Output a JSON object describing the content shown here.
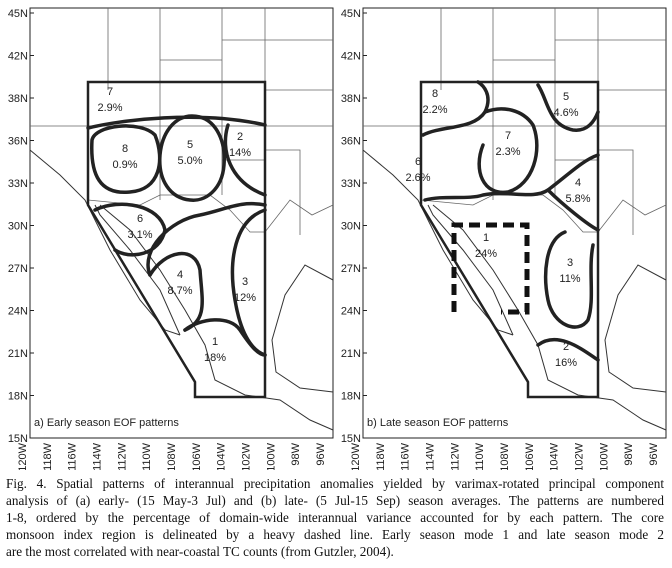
{
  "panels": [
    {
      "label": "a) Early season EOF patterns",
      "lat_ticks": [
        "45N",
        "42N",
        "38N",
        "36N",
        "33N",
        "30N",
        "27N",
        "24N",
        "21N",
        "18N",
        "15N"
      ],
      "lon_ticks": [
        "120W",
        "118W",
        "116W",
        "114W",
        "112W",
        "110W",
        "108W",
        "106W",
        "104W",
        "102W",
        "100W",
        "98W",
        "96W"
      ],
      "regions": [
        {
          "mode": "7",
          "percent": "2.9%"
        },
        {
          "mode": "8",
          "percent": "0.9%"
        },
        {
          "mode": "5",
          "percent": "5.0%"
        },
        {
          "mode": "2",
          "percent": "14%"
        },
        {
          "mode": "6",
          "percent": "3.1%"
        },
        {
          "mode": "4",
          "percent": "8.7%"
        },
        {
          "mode": "3",
          "percent": "12%"
        },
        {
          "mode": "1",
          "percent": "18%"
        }
      ]
    },
    {
      "label": "b) Late season EOF patterns",
      "lat_ticks": [
        "45N",
        "42N",
        "38N",
        "36N",
        "33N",
        "30N",
        "27N",
        "24N",
        "21N",
        "18N",
        "15N"
      ],
      "lon_ticks": [
        "120W",
        "118W",
        "116W",
        "114W",
        "112W",
        "110W",
        "108W",
        "106W",
        "104W",
        "102W",
        "100W",
        "98W",
        "96W"
      ],
      "regions": [
        {
          "mode": "8",
          "percent": "2.2%"
        },
        {
          "mode": "5",
          "percent": "4.6%"
        },
        {
          "mode": "7",
          "percent": "2.3%"
        },
        {
          "mode": "6",
          "percent": "2.6%"
        },
        {
          "mode": "4",
          "percent": "5.8%"
        },
        {
          "mode": "1",
          "percent": "24%"
        },
        {
          "mode": "3",
          "percent": "11%"
        },
        {
          "mode": "2",
          "percent": "16%"
        }
      ]
    }
  ],
  "caption": [
    "Fig. 4. Spatial patterns of interannual precipitation anomalies yielded by varimax-rotated principal component",
    "analysis of (a) early- (15 May-3 Jul) and (b) late- (5 Jul-15 Sep) season averages. The patterns are numbered",
    "1-8, ordered by the percentage of domain-wide interannual variance accounted for by each pattern. The core",
    "monsoon index region is delineated by a heavy dashed line. Early season mode 1 and late season mode 2",
    "are the most correlated with near-coastal TC counts (from Gutzler, 2004)."
  ]
}
